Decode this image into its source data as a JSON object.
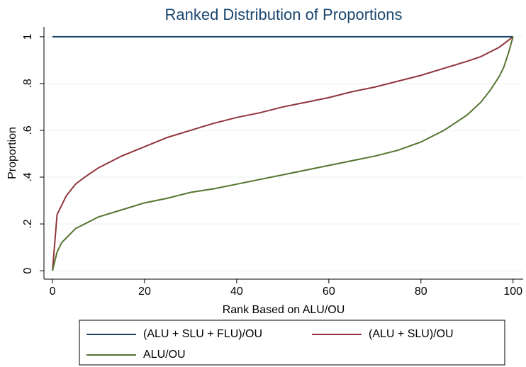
{
  "chart_data": {
    "type": "line",
    "title": "Ranked Distribution of Proportions",
    "x_label": "Rank Based on ALU/OU",
    "y_label": "Proportion",
    "x": [
      0,
      1,
      2,
      3,
      5,
      7,
      10,
      15,
      20,
      25,
      30,
      35,
      40,
      45,
      50,
      55,
      60,
      65,
      70,
      75,
      80,
      85,
      90,
      93,
      95,
      97,
      98,
      99,
      100
    ],
    "series": [
      {
        "name": "(ALU + SLU + FLU)/OU",
        "color": "#1a476f",
        "values": [
          1,
          1,
          1,
          1,
          1,
          1,
          1,
          1,
          1,
          1,
          1,
          1,
          1,
          1,
          1,
          1,
          1,
          1,
          1,
          1,
          1,
          1,
          1,
          1,
          1,
          1,
          1,
          1,
          1
        ]
      },
      {
        "name": "(ALU + SLU)/OU",
        "color": "#90353b",
        "values": [
          0,
          0.24,
          0.28,
          0.32,
          0.37,
          0.4,
          0.44,
          0.49,
          0.53,
          0.57,
          0.6,
          0.63,
          0.655,
          0.675,
          0.7,
          0.72,
          0.74,
          0.765,
          0.785,
          0.81,
          0.835,
          0.865,
          0.895,
          0.915,
          0.935,
          0.955,
          0.97,
          0.985,
          1
        ]
      },
      {
        "name": "ALU/OU",
        "color": "#55752f",
        "values": [
          0,
          0.08,
          0.12,
          0.14,
          0.18,
          0.2,
          0.23,
          0.26,
          0.29,
          0.31,
          0.335,
          0.35,
          0.37,
          0.39,
          0.41,
          0.43,
          0.45,
          0.47,
          0.49,
          0.515,
          0.55,
          0.6,
          0.665,
          0.72,
          0.77,
          0.83,
          0.87,
          0.93,
          1
        ]
      }
    ],
    "xlim": [
      -1.85,
      102.2
    ],
    "ylim": [
      -0.036,
      1.042
    ],
    "xticks": [
      0,
      20,
      40,
      60,
      80,
      100
    ],
    "yticks": [
      0,
      {
        "value": 0.2,
        "label": ".2"
      },
      {
        "value": 0.4,
        "label": ".4"
      },
      {
        "value": 0.6,
        "label": ".6"
      },
      {
        "value": 0.8,
        "label": ".8"
      },
      1
    ],
    "grid": true,
    "legend": "bottom"
  }
}
